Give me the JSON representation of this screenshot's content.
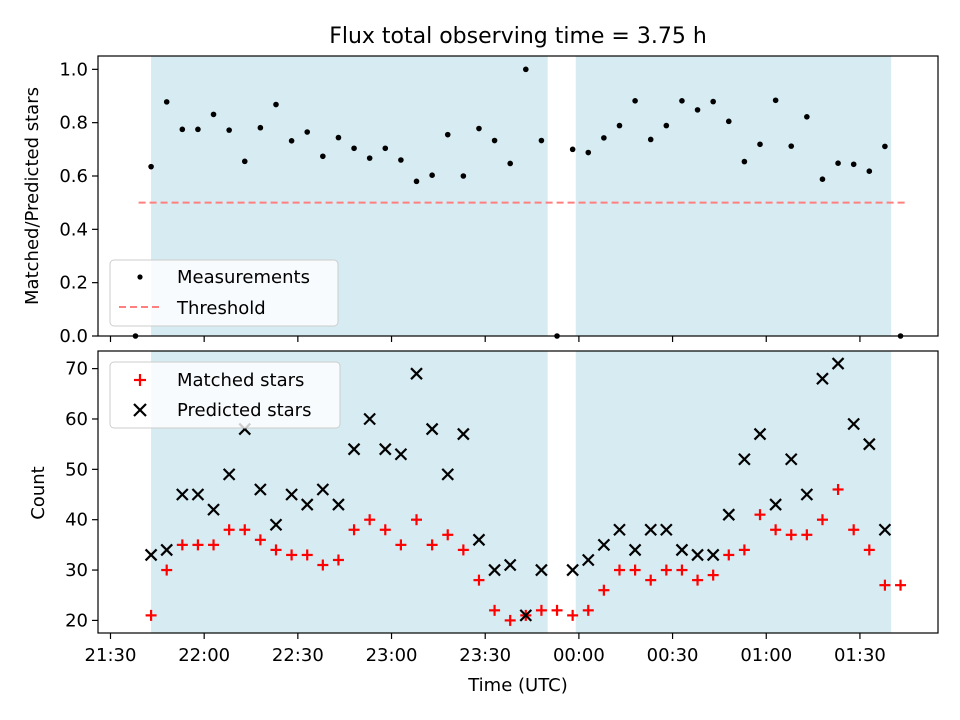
{
  "figure": {
    "title": "Flux total observing time = 3.75 h",
    "xlabel": "Time (UTC)",
    "xticks": [
      "21:30",
      "22:00",
      "22:30",
      "23:00",
      "23:30",
      "00:00",
      "00:30",
      "01:00",
      "01:30"
    ]
  },
  "colors": {
    "band": "#add8e6",
    "threshold": "#ff7f7f",
    "matched": "#ff0000",
    "predicted": "#000000"
  },
  "chart_data": [
    {
      "type": "scatter",
      "ylabel": "Matched/Predicted stars",
      "x_axis": "time (UTC)",
      "xlim": [
        "21:26",
        "01:55"
      ],
      "ylim": [
        0,
        1.05
      ],
      "yticks": [
        "0.0",
        "0.2",
        "0.4",
        "0.6",
        "0.8",
        "1.0"
      ],
      "shaded_intervals": [
        [
          "21:43",
          "23:50"
        ],
        [
          "23:59",
          "01:40"
        ]
      ],
      "threshold": {
        "name": "Threshold",
        "y": 0.5,
        "x_range": [
          "21:39",
          "01:45"
        ]
      },
      "legend": {
        "position": "lower-left",
        "entries": [
          "Measurements",
          "Threshold"
        ]
      },
      "series": [
        {
          "name": "Measurements",
          "points": [
            [
              "21:38",
              0.0
            ],
            [
              "21:43",
              0.635
            ],
            [
              "21:48",
              0.878
            ],
            [
              "21:53",
              0.775
            ],
            [
              "21:58",
              0.775
            ],
            [
              "22:03",
              0.831
            ],
            [
              "22:08",
              0.772
            ],
            [
              "22:13",
              0.655
            ],
            [
              "22:18",
              0.781
            ],
            [
              "22:23",
              0.868
            ],
            [
              "22:28",
              0.732
            ],
            [
              "22:33",
              0.765
            ],
            [
              "22:38",
              0.674
            ],
            [
              "22:43",
              0.744
            ],
            [
              "22:48",
              0.704
            ],
            [
              "22:53",
              0.667
            ],
            [
              "22:58",
              0.704
            ],
            [
              "23:03",
              0.66
            ],
            [
              "23:08",
              0.58
            ],
            [
              "23:13",
              0.603
            ],
            [
              "23:18",
              0.755
            ],
            [
              "23:23",
              0.6
            ],
            [
              "23:28",
              0.778
            ],
            [
              "23:33",
              0.733
            ],
            [
              "23:38",
              0.647
            ],
            [
              "23:43",
              1.0
            ],
            [
              "23:48",
              0.733
            ],
            [
              "23:53",
              0.0
            ],
            [
              "23:58",
              0.7
            ],
            [
              "00:03",
              0.688
            ],
            [
              "00:08",
              0.743
            ],
            [
              "00:13",
              0.789
            ],
            [
              "00:18",
              0.882
            ],
            [
              "00:23",
              0.737
            ],
            [
              "00:28",
              0.789
            ],
            [
              "00:33",
              0.882
            ],
            [
              "00:38",
              0.848
            ],
            [
              "00:43",
              0.879
            ],
            [
              "00:48",
              0.805
            ],
            [
              "00:53",
              0.654
            ],
            [
              "00:58",
              0.719
            ],
            [
              "01:03",
              0.884
            ],
            [
              "01:08",
              0.712
            ],
            [
              "01:13",
              0.822
            ],
            [
              "01:18",
              0.588
            ],
            [
              "01:23",
              0.648
            ],
            [
              "01:28",
              0.644
            ],
            [
              "01:33",
              0.618
            ],
            [
              "01:38",
              0.711
            ],
            [
              "01:43",
              0.0
            ]
          ]
        }
      ]
    },
    {
      "type": "scatter",
      "ylabel": "Count",
      "x_axis": "time (UTC)",
      "xlim": [
        "21:26",
        "01:55"
      ],
      "ylim": [
        17.5,
        73.5
      ],
      "yticks": [
        "20",
        "30",
        "40",
        "50",
        "60",
        "70"
      ],
      "shaded_intervals": [
        [
          "21:43",
          "23:50"
        ],
        [
          "23:59",
          "01:40"
        ]
      ],
      "legend": {
        "position": "upper-left",
        "entries": [
          "Matched stars",
          "Predicted stars"
        ]
      },
      "series": [
        {
          "name": "Matched stars",
          "marker": "+",
          "points": [
            [
              "21:43",
              21
            ],
            [
              "21:48",
              30
            ],
            [
              "21:53",
              35
            ],
            [
              "21:58",
              35
            ],
            [
              "22:03",
              35
            ],
            [
              "22:08",
              38
            ],
            [
              "22:13",
              38
            ],
            [
              "22:18",
              36
            ],
            [
              "22:23",
              34
            ],
            [
              "22:28",
              33
            ],
            [
              "22:33",
              33
            ],
            [
              "22:38",
              31
            ],
            [
              "22:43",
              32
            ],
            [
              "22:48",
              38
            ],
            [
              "22:53",
              40
            ],
            [
              "22:58",
              38
            ],
            [
              "23:03",
              35
            ],
            [
              "23:08",
              40
            ],
            [
              "23:13",
              35
            ],
            [
              "23:18",
              37
            ],
            [
              "23:23",
              34
            ],
            [
              "23:28",
              28
            ],
            [
              "23:33",
              22
            ],
            [
              "23:38",
              20
            ],
            [
              "23:43",
              21
            ],
            [
              "23:48",
              22
            ],
            [
              "23:53",
              22
            ],
            [
              "23:58",
              21
            ],
            [
              "00:03",
              22
            ],
            [
              "00:08",
              26
            ],
            [
              "00:13",
              30
            ],
            [
              "00:18",
              30
            ],
            [
              "00:23",
              28
            ],
            [
              "00:28",
              30
            ],
            [
              "00:33",
              30
            ],
            [
              "00:38",
              28
            ],
            [
              "00:43",
              29
            ],
            [
              "00:48",
              33
            ],
            [
              "00:53",
              34
            ],
            [
              "00:58",
              41
            ],
            [
              "01:03",
              38
            ],
            [
              "01:08",
              37
            ],
            [
              "01:13",
              37
            ],
            [
              "01:18",
              40
            ],
            [
              "01:23",
              46
            ],
            [
              "01:28",
              38
            ],
            [
              "01:33",
              34
            ],
            [
              "01:38",
              27
            ],
            [
              "01:43",
              27
            ]
          ]
        },
        {
          "name": "Predicted stars",
          "marker": "x",
          "points": [
            [
              "21:43",
              33
            ],
            [
              "21:48",
              34
            ],
            [
              "21:53",
              45
            ],
            [
              "21:58",
              45
            ],
            [
              "22:03",
              42
            ],
            [
              "22:08",
              49
            ],
            [
              "22:13",
              58
            ],
            [
              "22:18",
              46
            ],
            [
              "22:23",
              39
            ],
            [
              "22:28",
              45
            ],
            [
              "22:33",
              43
            ],
            [
              "22:38",
              46
            ],
            [
              "22:43",
              43
            ],
            [
              "22:48",
              54
            ],
            [
              "22:53",
              60
            ],
            [
              "22:58",
              54
            ],
            [
              "23:03",
              53
            ],
            [
              "23:08",
              69
            ],
            [
              "23:13",
              58
            ],
            [
              "23:18",
              49
            ],
            [
              "23:23",
              57
            ],
            [
              "23:28",
              36
            ],
            [
              "23:33",
              30
            ],
            [
              "23:38",
              31
            ],
            [
              "23:43",
              21
            ],
            [
              "23:48",
              30
            ],
            [
              "23:58",
              30
            ],
            [
              "00:03",
              32
            ],
            [
              "00:08",
              35
            ],
            [
              "00:13",
              38
            ],
            [
              "00:18",
              34
            ],
            [
              "00:23",
              38
            ],
            [
              "00:28",
              38
            ],
            [
              "00:33",
              34
            ],
            [
              "00:38",
              33
            ],
            [
              "00:43",
              33
            ],
            [
              "00:48",
              41
            ],
            [
              "00:53",
              52
            ],
            [
              "00:58",
              57
            ],
            [
              "01:03",
              43
            ],
            [
              "01:08",
              52
            ],
            [
              "01:13",
              45
            ],
            [
              "01:18",
              68
            ],
            [
              "01:23",
              71
            ],
            [
              "01:28",
              59
            ],
            [
              "01:33",
              55
            ],
            [
              "01:38",
              38
            ]
          ]
        }
      ]
    }
  ]
}
